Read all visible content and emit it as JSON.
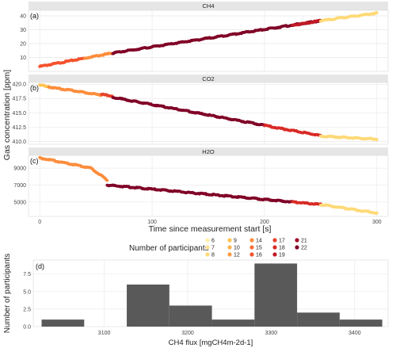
{
  "figure": {
    "shared_ylabel": "Gas concentration [ppm]",
    "shared_xlabel": "Time since measurement start [s]",
    "legend": {
      "title": "Number of participants",
      "entries": [
        {
          "label": "6",
          "color": "#fff0a8"
        },
        {
          "label": "7",
          "color": "#fee391"
        },
        {
          "label": "8",
          "color": "#fed976"
        },
        {
          "label": "9",
          "color": "#fec44f"
        },
        {
          "label": "10",
          "color": "#feb24c"
        },
        {
          "label": "12",
          "color": "#fd9b43"
        },
        {
          "label": "14",
          "color": "#fd8d3c"
        },
        {
          "label": "15",
          "color": "#fc6d35"
        },
        {
          "label": "16",
          "color": "#f4532e"
        },
        {
          "label": "17",
          "color": "#e8402b"
        },
        {
          "label": "18",
          "color": "#d92b26"
        },
        {
          "label": "19",
          "color": "#c21a26"
        },
        {
          "label": "21",
          "color": "#a50d27"
        },
        {
          "label": "22",
          "color": "#800026"
        }
      ]
    }
  },
  "chart_data": [
    {
      "type": "scatter",
      "tag": "(a)",
      "title": "CH4",
      "xlim": [
        -10,
        310
      ],
      "ylim": [
        0,
        44
      ],
      "yticks": [
        "10",
        "20",
        "30",
        "40"
      ],
      "xticks": [
        0,
        100,
        200,
        300
      ],
      "grid": true,
      "segments": [
        {
          "x": [
            0,
            40
          ],
          "y": [
            3.5,
            9.5
          ],
          "color": "#f4532e"
        },
        {
          "x": [
            40,
            65
          ],
          "y": [
            9.5,
            13.2
          ],
          "color": "#fd8d3c"
        },
        {
          "x": [
            65,
            250
          ],
          "y": [
            13.2,
            36.5
          ],
          "color": "#800026"
        },
        {
          "x": [
            225,
            250
          ],
          "y": [
            33.2,
            36.5
          ],
          "color": "#c21a26"
        },
        {
          "x": [
            250,
            300
          ],
          "y": [
            36.5,
            42.0
          ],
          "color": "#fed976"
        }
      ]
    },
    {
      "type": "scatter",
      "tag": "(b)",
      "title": "CO2",
      "xlim": [
        -10,
        310
      ],
      "ylim": [
        409.5,
        420.3
      ],
      "yticks": [
        "410.0",
        "412.5",
        "415.0",
        "417.5",
        "420.0"
      ],
      "xticks": [
        0,
        100,
        200,
        300
      ],
      "grid": true,
      "segments": [
        {
          "x": [
            0,
            8
          ],
          "y": [
            419.8,
            419.6
          ],
          "color": "#fec44f"
        },
        {
          "x": [
            8,
            55
          ],
          "y": [
            419.5,
            418.1
          ],
          "color": "#fd8d3c"
        },
        {
          "x": [
            55,
            65
          ],
          "y": [
            418.2,
            417.9
          ],
          "color": "#e8402b"
        },
        {
          "x": [
            65,
            200
          ],
          "y": [
            417.7,
            412.8
          ],
          "color": "#800026"
        },
        {
          "x": [
            200,
            250
          ],
          "y": [
            412.8,
            411.0
          ],
          "color": "#d92b26"
        },
        {
          "x": [
            250,
            300
          ],
          "y": [
            410.9,
            410.4
          ],
          "color": "#fed976"
        }
      ]
    },
    {
      "type": "scatter",
      "tag": "(c)",
      "title": "H2O",
      "xlim": [
        -10,
        310
      ],
      "ylim": [
        3300,
        10500
      ],
      "yticks": [
        "5000",
        "7000",
        "9000"
      ],
      "xticks": [
        0,
        100,
        200,
        300
      ],
      "xticklabels": [
        "0",
        "100",
        "200",
        "300"
      ],
      "grid": true,
      "segments": [
        {
          "x": [
            0,
            60
          ],
          "y": [
            10200,
            7600
          ],
          "color": "#fd8d3c",
          "shape": "knee"
        },
        {
          "x": [
            60,
            225
          ],
          "y": [
            7000,
            5000
          ],
          "color": "#800026"
        },
        {
          "x": [
            225,
            250
          ],
          "y": [
            5000,
            4700
          ],
          "color": "#d92b26"
        },
        {
          "x": [
            250,
            300
          ],
          "y": [
            4700,
            3700
          ],
          "color": "#fed976"
        }
      ]
    },
    {
      "type": "bar",
      "tag": "(d)",
      "xlabel": "CH4 flux [mgCH4m-2d-1]",
      "ylabel": "Number of participants",
      "xlim": [
        3015,
        3440
      ],
      "ylim": [
        0,
        9.5
      ],
      "xticks": [
        "3100",
        "3200",
        "3300",
        "3400"
      ],
      "yticks": [
        "0.0",
        "2.5",
        "5.0",
        "7.5"
      ],
      "bins": [
        {
          "start": 3025,
          "end": 3076,
          "value": 1
        },
        {
          "start": 3076,
          "end": 3127,
          "value": 0
        },
        {
          "start": 3127,
          "end": 3178,
          "value": 6
        },
        {
          "start": 3178,
          "end": 3229,
          "value": 3
        },
        {
          "start": 3229,
          "end": 3280,
          "value": 1
        },
        {
          "start": 3280,
          "end": 3331,
          "value": 9
        },
        {
          "start": 3331,
          "end": 3382,
          "value": 2
        },
        {
          "start": 3382,
          "end": 3433,
          "value": 1
        }
      ],
      "bar_color": "#595959"
    }
  ]
}
